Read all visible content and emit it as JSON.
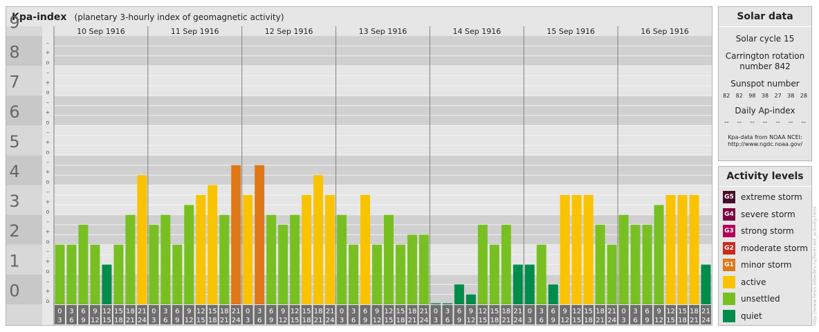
{
  "header": {
    "title": "Kpa-index",
    "subtitle": "(planetary 3-hourly index of geomagnetic activity)"
  },
  "solar": {
    "heading": "Solar data",
    "cycle": "Solar cycle 15",
    "carrington_1": "Carrington rotation",
    "carrington_2": "number 842",
    "sunspot_label": "Sunspot number",
    "sunspots": [
      "82",
      "82",
      "98",
      "38",
      "27",
      "38",
      "28"
    ],
    "ap_label": "Daily Ap-index",
    "ap": [
      "--",
      "--",
      "--",
      "--",
      "--",
      "--",
      "--"
    ],
    "source_1": "Kpa-data from NOAA NCEI:",
    "source_2": "http://www.ngdc.noaa.gov/"
  },
  "levels": {
    "heading": "Activity levels",
    "items": [
      {
        "code": "G5",
        "label": "extreme storm",
        "color": "#4a0b2a"
      },
      {
        "code": "G4",
        "label": "severe storm",
        "color": "#800040"
      },
      {
        "code": "G3",
        "label": "strong storm",
        "color": "#b5005a"
      },
      {
        "code": "G2",
        "label": "moderate storm",
        "color": "#cc2a1a"
      },
      {
        "code": "G1",
        "label": "minor storm",
        "color": "#e07818"
      },
      {
        "code": "",
        "label": "active",
        "color": "#f9c300"
      },
      {
        "code": "",
        "label": "unsettled",
        "color": "#78c022"
      },
      {
        "code": "",
        "label": "quiet",
        "color": "#008c4a"
      }
    ]
  },
  "watermark": "http://www.tesis.lebedev.ru/forecast_activity.html",
  "chart_data": {
    "type": "bar",
    "ylim": [
      0,
      9
    ],
    "y_ticks": [
      "0",
      "1",
      "2",
      "3",
      "4",
      "5",
      "6",
      "7",
      "8",
      "9"
    ],
    "minor_marks": [
      "o",
      "+",
      "–"
    ],
    "days": [
      "10 Sep 1916",
      "11 Sep 1916",
      "12 Sep 1916",
      "13 Sep 1916",
      "14 Sep 1916",
      "15 Sep 1916",
      "16 Sep 1916"
    ],
    "slot_starts": [
      "0",
      "3",
      "6",
      "9",
      "12",
      "15",
      "18",
      "21"
    ],
    "slot_ends": [
      "3",
      "6",
      "9",
      "12",
      "15",
      "18",
      "21",
      "24"
    ],
    "values": [
      [
        2.0,
        2.0,
        2.667,
        2.0,
        1.333,
        2.0,
        3.0,
        4.333
      ],
      [
        2.667,
        3.0,
        2.0,
        3.333,
        3.667,
        4.0,
        3.0,
        4.667
      ],
      [
        3.667,
        4.667,
        3.0,
        2.667,
        3.0,
        3.667,
        4.333,
        3.667
      ],
      [
        3.0,
        2.0,
        3.667,
        2.0,
        3.0,
        2.0,
        2.333,
        2.333
      ],
      [
        0.0,
        0.0,
        0.667,
        0.333,
        2.667,
        2.0,
        2.667,
        1.333
      ],
      [
        1.333,
        2.0,
        0.667,
        3.667,
        3.667,
        3.667,
        2.667,
        2.0
      ],
      [
        3.0,
        2.667,
        2.667,
        3.333,
        3.667,
        3.667,
        3.667,
        1.333
      ]
    ],
    "colors": {
      "quiet": "#008c4a",
      "unsettled": "#78c022",
      "active": "#f9c300",
      "minor_storm": "#e07818"
    }
  }
}
